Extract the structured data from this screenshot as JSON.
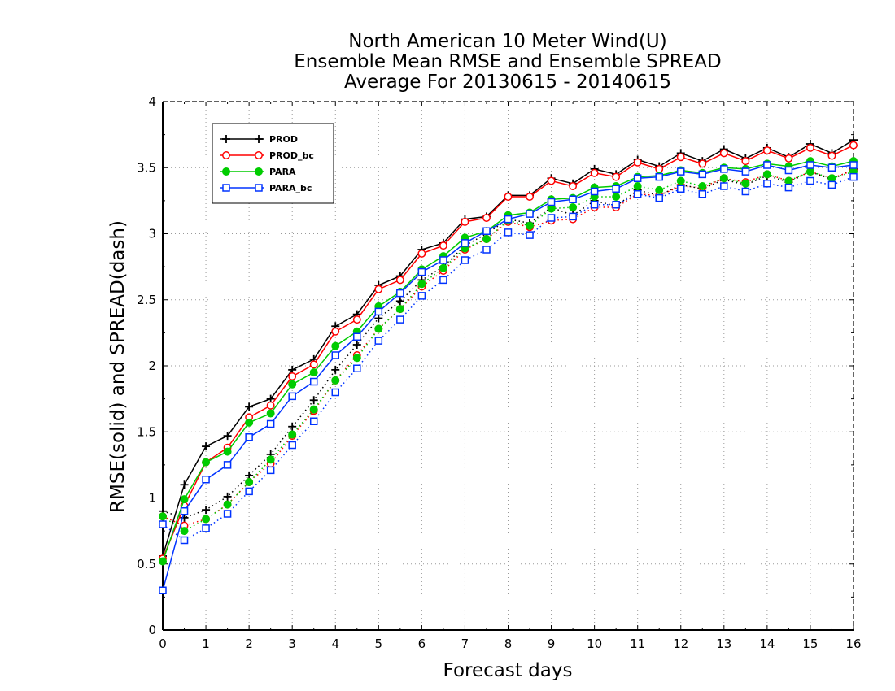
{
  "chart_data": {
    "type": "line",
    "title_lines": [
      "North American 10 Meter Wind(U)",
      "Ensemble Mean RMSE and Ensemble SPREAD",
      "Average For 20130615 - 20140615"
    ],
    "xlabel": "Forecast days",
    "ylabel": "RMSE(solid) and SPREAD(dash)",
    "xlim": [
      0,
      16
    ],
    "ylim": [
      0,
      4
    ],
    "xticks": [
      "0",
      "1",
      "2",
      "3",
      "4",
      "5",
      "6",
      "7",
      "8",
      "9",
      "10",
      "11",
      "12",
      "13",
      "14",
      "15",
      "16"
    ],
    "yticks": [
      "0",
      "0.5",
      "1",
      "1.5",
      "2",
      "2.5",
      "3",
      "3.5",
      "4"
    ],
    "grid": true,
    "legend_position": "top-left",
    "x": [
      0,
      0.5,
      1,
      1.5,
      2,
      2.5,
      3,
      3.5,
      4,
      4.5,
      5,
      5.5,
      6,
      6.5,
      7,
      7.5,
      8,
      8.5,
      9,
      9.5,
      10,
      10.5,
      11,
      11.5,
      12,
      12.5,
      13,
      13.5,
      14,
      14.5,
      15,
      15.5,
      16
    ],
    "series": [
      {
        "name": "PROD",
        "color": "#000000",
        "marker": "plus",
        "rmse": [
          0.56,
          1.1,
          1.39,
          1.47,
          1.69,
          1.75,
          1.97,
          2.05,
          2.3,
          2.39,
          2.61,
          2.68,
          2.88,
          2.93,
          3.11,
          3.13,
          3.29,
          3.29,
          3.42,
          3.38,
          3.49,
          3.45,
          3.56,
          3.51,
          3.61,
          3.55,
          3.64,
          3.57,
          3.65,
          3.58,
          3.68,
          3.61,
          3.71
        ],
        "spread": [
          0.9,
          0.85,
          0.91,
          1.01,
          1.17,
          1.33,
          1.54,
          1.74,
          1.97,
          2.16,
          2.36,
          2.49,
          2.65,
          2.75,
          2.91,
          3.0,
          3.11,
          3.08,
          3.2,
          3.14,
          3.25,
          3.21,
          3.33,
          3.29,
          3.37,
          3.34,
          3.41,
          3.37,
          3.44,
          3.39,
          3.47,
          3.41,
          3.49
        ]
      },
      {
        "name": "PROD_bc",
        "color": "#ff0000",
        "marker": "circle-open",
        "rmse": [
          0.54,
          0.94,
          1.27,
          1.38,
          1.61,
          1.7,
          1.92,
          2.01,
          2.26,
          2.35,
          2.58,
          2.65,
          2.85,
          2.91,
          3.09,
          3.12,
          3.28,
          3.28,
          3.4,
          3.36,
          3.46,
          3.43,
          3.54,
          3.49,
          3.58,
          3.53,
          3.61,
          3.55,
          3.63,
          3.57,
          3.65,
          3.59,
          3.67
        ],
        "spread": [
          0.86,
          0.79,
          0.84,
          0.95,
          1.12,
          1.26,
          1.47,
          1.66,
          1.89,
          2.08,
          2.28,
          2.43,
          2.6,
          2.72,
          2.88,
          2.96,
          3.09,
          3.05,
          3.1,
          3.11,
          3.2,
          3.2,
          3.3,
          3.29,
          3.36,
          3.35,
          3.42,
          3.39,
          3.45,
          3.4,
          3.47,
          3.42,
          3.48
        ]
      },
      {
        "name": "PARA",
        "color": "#00cc00",
        "marker": "circle-filled",
        "rmse": [
          0.52,
          0.99,
          1.27,
          1.35,
          1.57,
          1.64,
          1.86,
          1.95,
          2.15,
          2.26,
          2.45,
          2.56,
          2.73,
          2.83,
          2.97,
          3.02,
          3.14,
          3.16,
          3.26,
          3.27,
          3.35,
          3.36,
          3.43,
          3.44,
          3.48,
          3.46,
          3.5,
          3.49,
          3.53,
          3.51,
          3.55,
          3.51,
          3.55
        ],
        "spread": [
          0.86,
          0.75,
          0.84,
          0.95,
          1.12,
          1.29,
          1.48,
          1.67,
          1.89,
          2.06,
          2.28,
          2.43,
          2.62,
          2.74,
          2.89,
          2.96,
          3.1,
          3.06,
          3.19,
          3.2,
          3.28,
          3.28,
          3.36,
          3.33,
          3.4,
          3.36,
          3.42,
          3.38,
          3.45,
          3.4,
          3.47,
          3.42,
          3.47
        ]
      },
      {
        "name": "PARA_bc",
        "color": "#0033ff",
        "marker": "square-open",
        "rmse": [
          0.3,
          0.9,
          1.14,
          1.25,
          1.46,
          1.56,
          1.77,
          1.88,
          2.08,
          2.22,
          2.41,
          2.55,
          2.71,
          2.8,
          2.93,
          3.02,
          3.11,
          3.15,
          3.24,
          3.26,
          3.32,
          3.34,
          3.42,
          3.43,
          3.47,
          3.45,
          3.49,
          3.47,
          3.52,
          3.48,
          3.52,
          3.5,
          3.52
        ],
        "spread": [
          0.8,
          0.68,
          0.77,
          0.88,
          1.05,
          1.21,
          1.4,
          1.58,
          1.8,
          1.98,
          2.19,
          2.35,
          2.53,
          2.65,
          2.8,
          2.88,
          3.01,
          2.99,
          3.12,
          3.13,
          3.22,
          3.22,
          3.3,
          3.27,
          3.34,
          3.3,
          3.36,
          3.32,
          3.38,
          3.35,
          3.4,
          3.37,
          3.43
        ]
      }
    ]
  }
}
